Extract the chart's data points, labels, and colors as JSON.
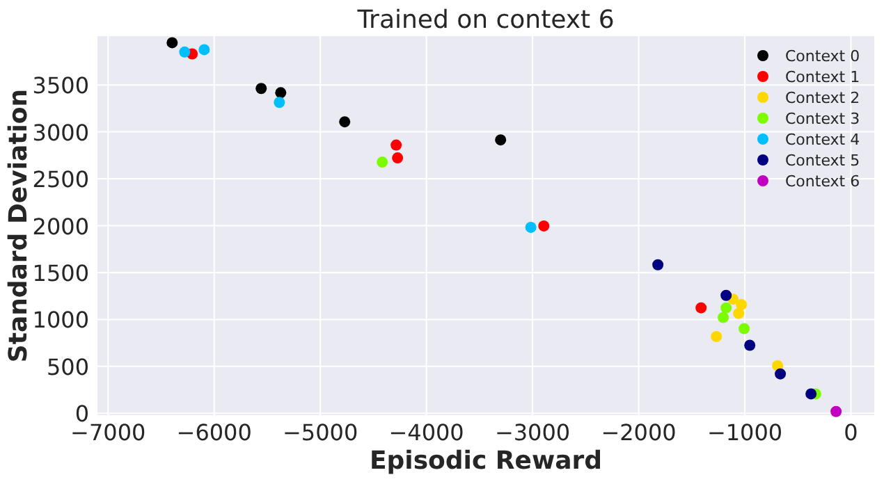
{
  "chart_data": {
    "type": "scatter",
    "title": "Trained on context 6",
    "xlabel": "Episodic Reward",
    "ylabel": "Standard Deviation",
    "xlim": [
      -7100,
      220
    ],
    "ylim": [
      -20,
      4020
    ],
    "xticks": [
      {
        "value": -7000,
        "label": "−7000"
      },
      {
        "value": -6000,
        "label": "−6000"
      },
      {
        "value": -5000,
        "label": "−5000"
      },
      {
        "value": -4000,
        "label": "−4000"
      },
      {
        "value": -3000,
        "label": "−3000"
      },
      {
        "value": -2000,
        "label": "−2000"
      },
      {
        "value": -1000,
        "label": "−1000"
      },
      0
    ],
    "yticks": [
      0,
      500,
      1000,
      1500,
      2000,
      2500,
      3000,
      3500
    ],
    "grid": true,
    "legend": "top right",
    "marker": "circle",
    "series": [
      {
        "name": "Context 0",
        "color": "#000000",
        "x": [
          -6396,
          -5557,
          -5373,
          -4770,
          -3301
        ],
        "values": [
          3950,
          3462,
          3417,
          3107,
          2914
        ]
      },
      {
        "name": "Context 1",
        "color": "#ff0000",
        "x": [
          -6207,
          -4285,
          -4272,
          -2894,
          -1412
        ],
        "values": [
          3831,
          2859,
          2722,
          1997,
          1124
        ]
      },
      {
        "name": "Context 2",
        "color": "#ffd700",
        "x": [
          -1111,
          -1032,
          -1058,
          -1268,
          -691
        ],
        "values": [
          1217,
          1158,
          1065,
          818,
          507
        ]
      },
      {
        "name": "Context 3",
        "color": "#7cfc00",
        "x": [
          -4416,
          -1176,
          -1203,
          -1006,
          -332
        ],
        "values": [
          2678,
          1124,
          1021,
          902,
          207
        ]
      },
      {
        "name": "Context 4",
        "color": "#00bfff",
        "x": [
          -6278,
          -6094,
          -5386,
          -3016
        ],
        "values": [
          3851,
          3876,
          3314,
          1982
        ]
      },
      {
        "name": "Context 5",
        "color": "#000080",
        "x": [
          -1819,
          -1176,
          -953,
          -665,
          -376
        ],
        "values": [
          1583,
          1257,
          725,
          420,
          207
        ]
      },
      {
        "name": "Context 6",
        "color": "#c000c0",
        "x": [
          -140
        ],
        "values": [
          19
        ]
      }
    ]
  }
}
